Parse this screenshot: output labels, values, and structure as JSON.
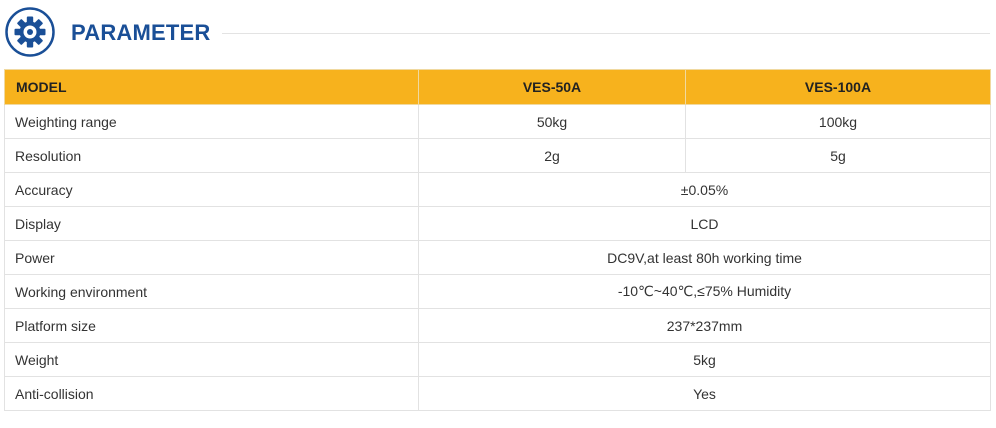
{
  "header": {
    "title": "PARAMETER",
    "icon": "gear-icon",
    "icon_color": "#1a4f97"
  },
  "table": {
    "header_color": "#f7b21d",
    "columns": [
      "MODEL",
      "VES-50A",
      "VES-100A"
    ],
    "rows": [
      {
        "label": "Weighting range",
        "values": [
          "50kg",
          "100kg"
        ]
      },
      {
        "label": "Resolution",
        "values": [
          "2g",
          "5g"
        ]
      },
      {
        "label": "Accuracy",
        "shared": "±0.05%"
      },
      {
        "label": "Display",
        "shared": "LCD"
      },
      {
        "label": "Power",
        "shared": "DC9V,at least 80h working time"
      },
      {
        "label": "Working environment",
        "shared": "-10℃~40℃,≤75% Humidity"
      },
      {
        "label": "Platform size",
        "shared": "237*237mm"
      },
      {
        "label": "Weight",
        "shared": "5kg"
      },
      {
        "label": "Anti-collision",
        "shared": "Yes"
      }
    ]
  }
}
